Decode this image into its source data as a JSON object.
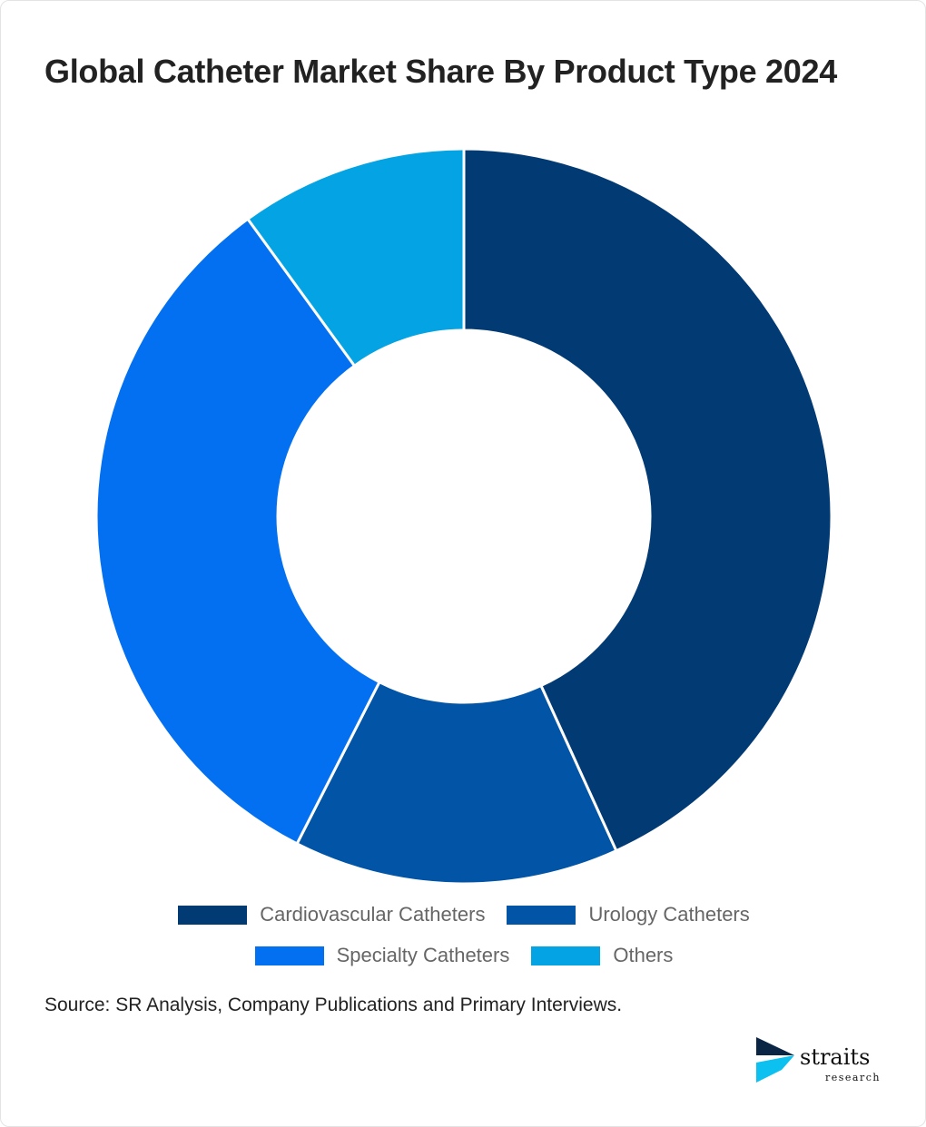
{
  "title": "Global Catheter Market Share By Product Type 2024",
  "chart_data": {
    "type": "pie",
    "variant": "donut",
    "title": "Global Catheter Market Share By Product Type 2024",
    "categories": [
      "Cardiovascular Catheters",
      "Urology Catheters",
      "Specialty Catheters",
      "Others"
    ],
    "values": [
      43.2,
      14.3,
      32.5,
      10.0
    ],
    "unit": "%",
    "colors": [
      "#023a74",
      "#0154a6",
      "#0270f0",
      "#04a3e3"
    ],
    "legend_position": "bottom"
  },
  "source": {
    "label": "Source",
    "text": ": SR Analysis, Company Publications and Primary Interviews."
  },
  "logo": {
    "name": "straits",
    "sub": "research"
  }
}
